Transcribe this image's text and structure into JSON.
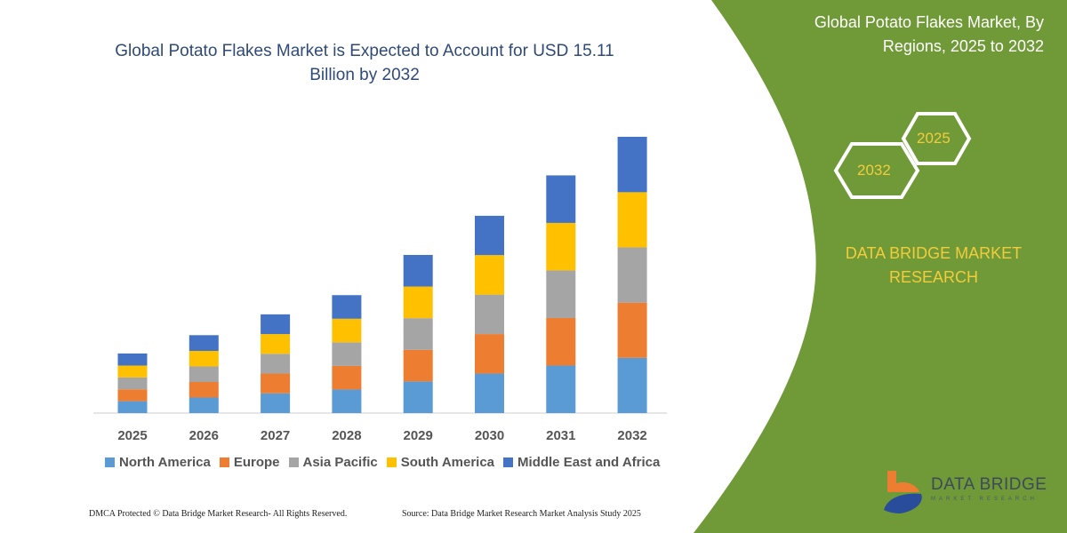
{
  "header": {
    "title": "Global Potato Flakes Market is Expected to Account for USD 15.11 Billion by 2032",
    "side_title": "Global Potato Flakes Market, By Regions, 2025 to 2032",
    "hex_start": "2025",
    "hex_end": "2032",
    "brand": "DATA BRIDGE MARKET RESEARCH"
  },
  "footer": {
    "left": "DMCA Protected © Data Bridge Market Research-  All Rights Reserved.",
    "right": "Source: Data Bridge Market Research  Market Analysis Study 2025"
  },
  "logo": {
    "name": "DATA BRIDGE",
    "sub": "MARKET RESEARCH"
  },
  "colors": {
    "panel": "#6f9a37",
    "accent": "#f3cc3c"
  },
  "chart_data": {
    "type": "bar",
    "stacked": true,
    "title": "Global Potato Flakes Market is Expected to Account for USD 15.11 Billion by 2032",
    "categories": [
      "2025",
      "2026",
      "2027",
      "2028",
      "2029",
      "2030",
      "2031",
      "2032"
    ],
    "series": [
      {
        "name": "North America",
        "color": "#5b9bd5",
        "values": [
          0.65,
          0.85,
          1.08,
          1.29,
          1.73,
          2.16,
          2.6,
          3.02
        ]
      },
      {
        "name": "Europe",
        "color": "#ed7d31",
        "values": [
          0.65,
          0.85,
          1.08,
          1.29,
          1.73,
          2.16,
          2.6,
          3.02
        ]
      },
      {
        "name": "Asia Pacific",
        "color": "#a5a5a5",
        "values": [
          0.65,
          0.85,
          1.08,
          1.29,
          1.73,
          2.16,
          2.6,
          3.02
        ]
      },
      {
        "name": "South America",
        "color": "#ffc000",
        "values": [
          0.65,
          0.85,
          1.08,
          1.29,
          1.73,
          2.16,
          2.6,
          3.02
        ]
      },
      {
        "name": "Middle East and Africa",
        "color": "#4472c4",
        "values": [
          0.66,
          0.86,
          1.08,
          1.29,
          1.73,
          2.15,
          2.6,
          3.03
        ]
      }
    ],
    "ylim": [
      0,
      15.11
    ],
    "grid": false,
    "legend": "bottom"
  }
}
